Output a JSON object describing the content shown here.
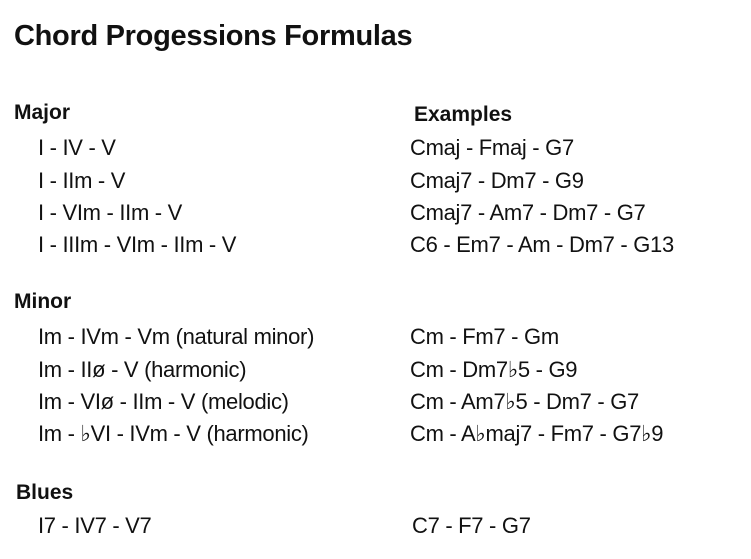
{
  "title": "Chord Progessions Formulas",
  "sections": [
    {
      "heading": "Major",
      "examples_heading": "Examples",
      "rows": [
        {
          "formula": "I - IV - V",
          "example": "Cmaj - Fmaj - G7"
        },
        {
          "formula": "I - IIm - V",
          "example": "Cmaj7 - Dm7 - G9"
        },
        {
          "formula": "I - VIm - IIm - V",
          "example": "Cmaj7 - Am7 - Dm7 - G7"
        },
        {
          "formula": "I - IIIm - VIm - IIm - V",
          "example": "C6 - Em7 - Am - Dm7 - G13"
        }
      ]
    },
    {
      "heading": "Minor",
      "rows": [
        {
          "formula": "Im - IVm - Vm (natural minor)",
          "example": "Cm - Fm7 - Gm"
        },
        {
          "formula": "Im - IIø - V (harmonic)",
          "example": "Cm - Dm7♭5 - G9"
        },
        {
          "formula": "Im - VIø - IIm - V (melodic)",
          "example": "Cm - Am7♭5 - Dm7 - G7"
        },
        {
          "formula": "Im - ♭VI - IVm - V (harmonic)",
          "example": "Cm - A♭maj7 - Fm7 - G7♭9"
        }
      ]
    },
    {
      "heading": "Blues",
      "rows": [
        {
          "formula": "I7 - IV7 - V7",
          "example": "C7 - F7 - G7"
        }
      ]
    }
  ]
}
